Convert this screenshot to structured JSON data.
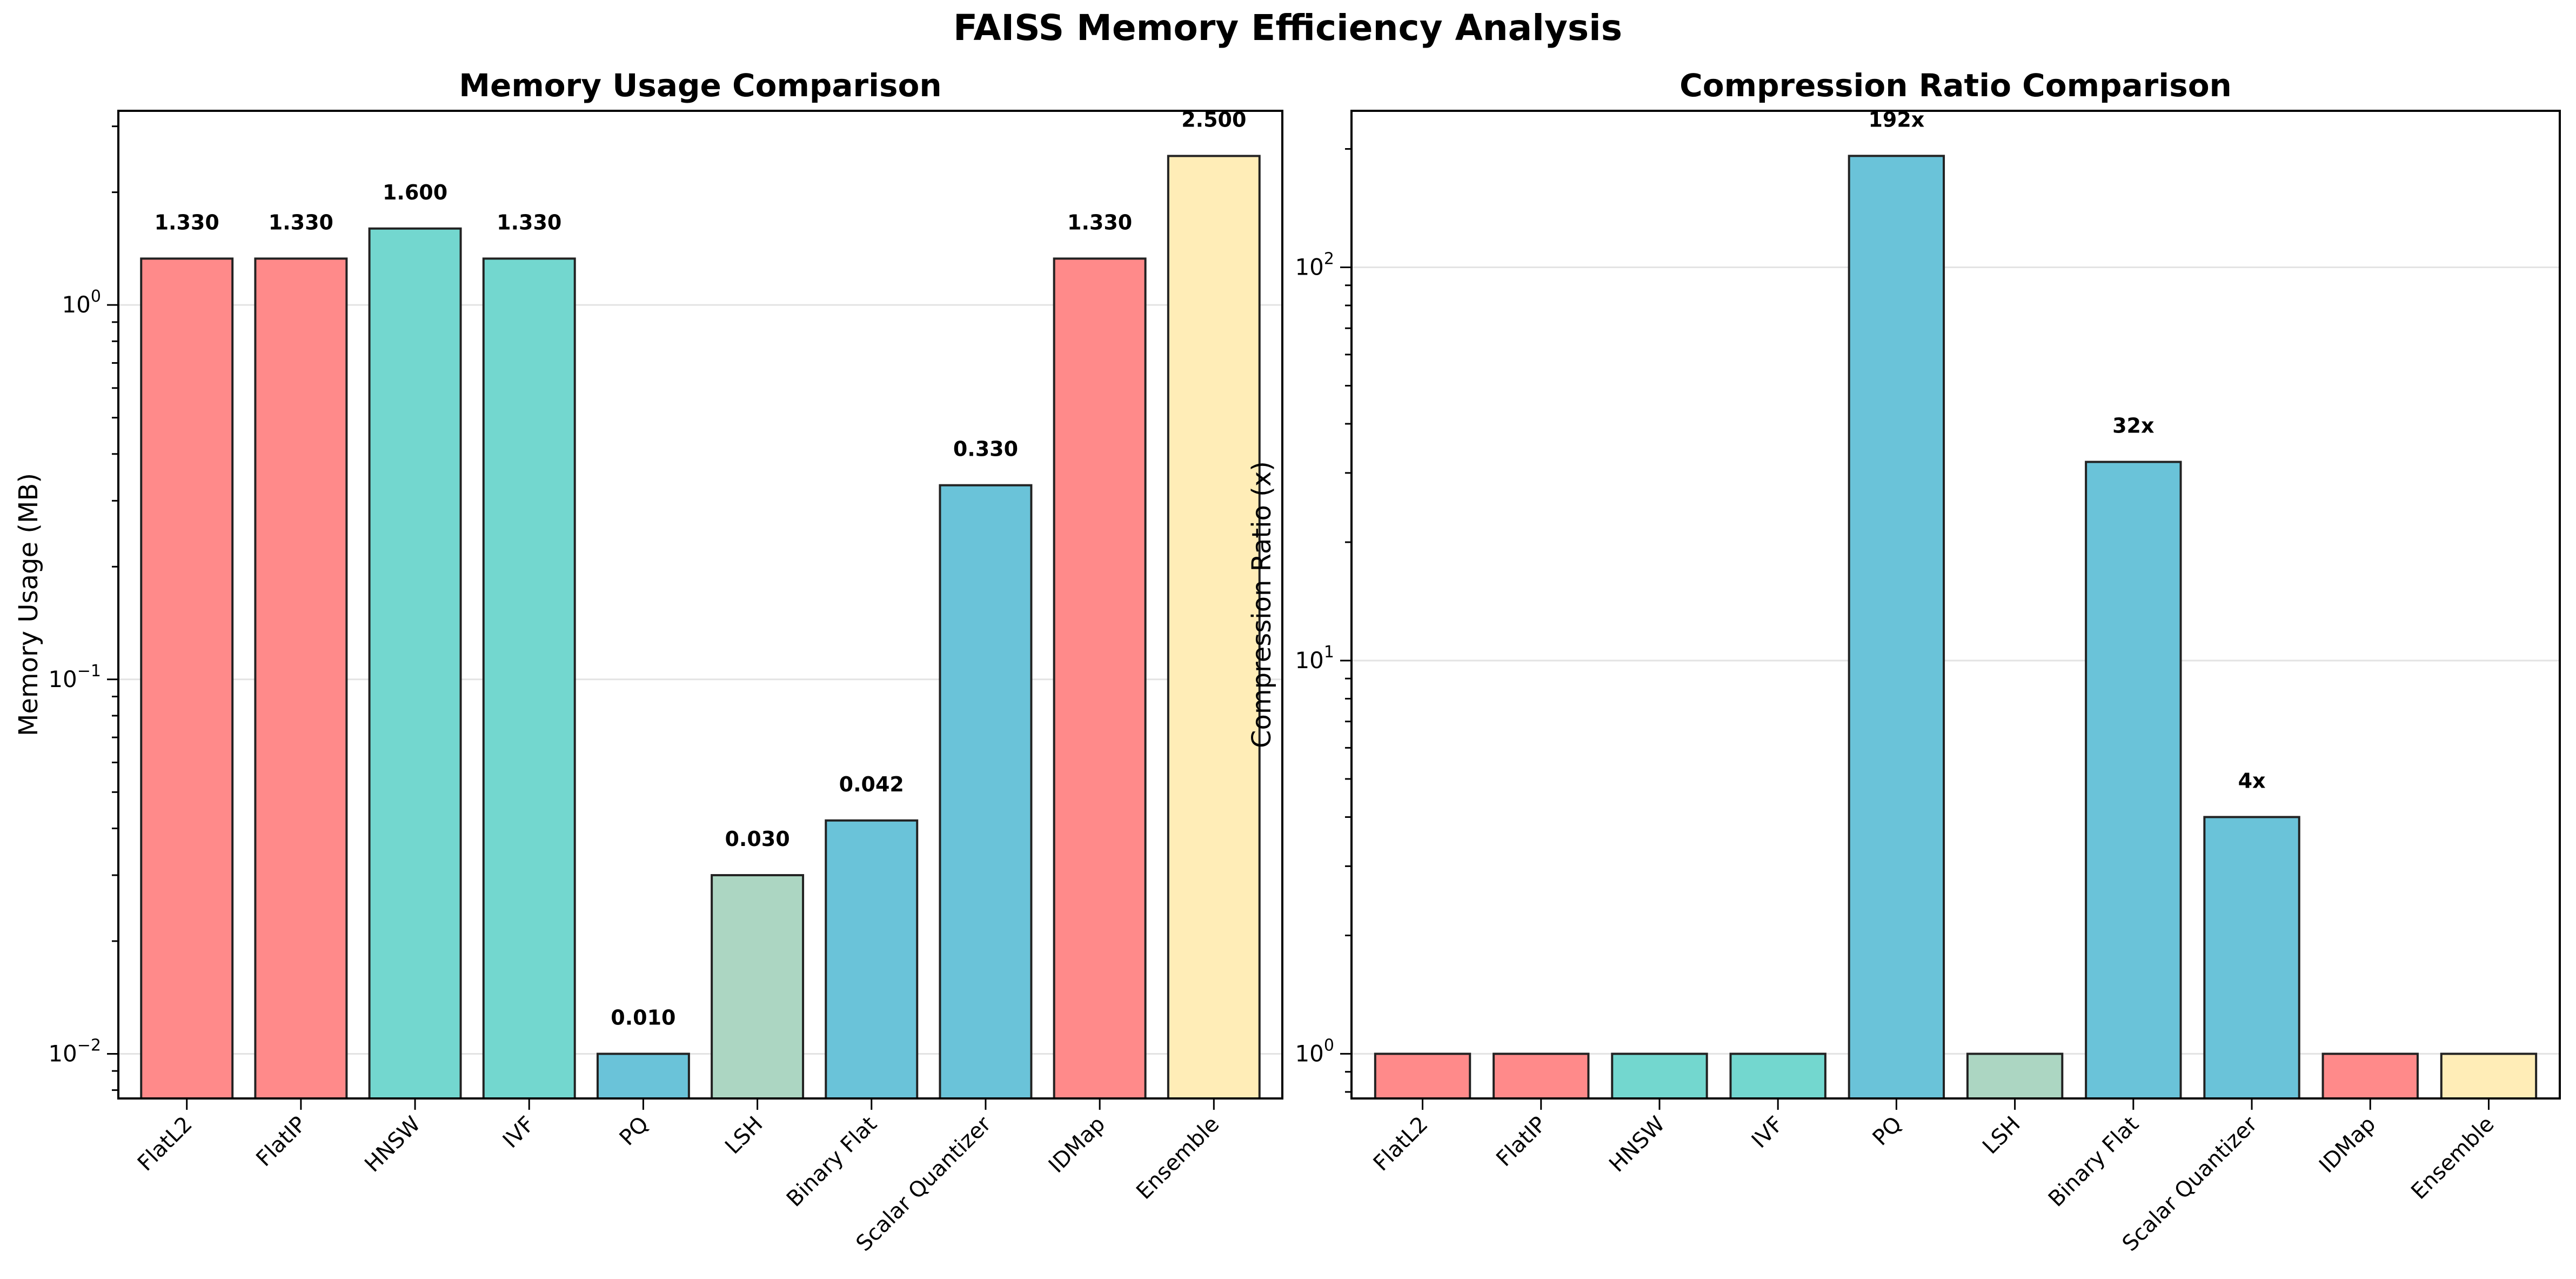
{
  "figure": {
    "suptitle": "FAISS Memory Efficiency Analysis"
  },
  "colors": {
    "red": "#ff8a8a",
    "teal": "#73d7cf",
    "blue": "#6ac3d9",
    "sage": "#acd6c2",
    "yellow": "#ffedb7",
    "edge": "#222222",
    "grid": "#e3e3e3",
    "text": "#000000"
  },
  "chart_data": [
    {
      "type": "bar",
      "title": "Memory Usage Comparison",
      "xlabel": "",
      "ylabel": "Memory Usage (MB)",
      "yscale": "log",
      "ylim": [
        0.0076,
        3.3
      ],
      "yticks": [
        {
          "value": 0.01,
          "base": "10",
          "exp": "−2"
        },
        {
          "value": 0.1,
          "base": "10",
          "exp": "−1"
        },
        {
          "value": 1,
          "base": "10",
          "exp": "0"
        }
      ],
      "grid": true,
      "categories": [
        "FlatL2",
        "FlatIP",
        "HNSW",
        "IVF",
        "PQ",
        "LSH",
        "Binary Flat",
        "Scalar Quantizer",
        "IDMap",
        "Ensemble"
      ],
      "values": [
        1.33,
        1.33,
        1.6,
        1.33,
        0.01,
        0.03,
        0.042,
        0.33,
        1.33,
        2.5
      ],
      "value_labels": [
        "1.330",
        "1.330",
        "1.600",
        "1.330",
        "0.010",
        "0.030",
        "0.042",
        "0.330",
        "1.330",
        "2.500"
      ],
      "bar_colors": [
        "red",
        "red",
        "teal",
        "teal",
        "blue",
        "sage",
        "blue",
        "blue",
        "red",
        "yellow"
      ]
    },
    {
      "type": "bar",
      "title": "Compression Ratio Comparison",
      "xlabel": "",
      "ylabel": "Compression Ratio (x)",
      "yscale": "log",
      "ylim": [
        0.77,
        250
      ],
      "yticks": [
        {
          "value": 1,
          "base": "10",
          "exp": "0"
        },
        {
          "value": 10,
          "base": "10",
          "exp": "1"
        },
        {
          "value": 100,
          "base": "10",
          "exp": "2"
        }
      ],
      "grid": true,
      "categories": [
        "FlatL2",
        "FlatIP",
        "HNSW",
        "IVF",
        "PQ",
        "LSH",
        "Binary Flat",
        "Scalar Quantizer",
        "IDMap",
        "Ensemble"
      ],
      "values": [
        1,
        1,
        1,
        1,
        192,
        1,
        32,
        4,
        1,
        1
      ],
      "value_labels": [
        "",
        "",
        "",
        "",
        "192x",
        "",
        "32x",
        "4x",
        "",
        ""
      ],
      "bar_colors": [
        "red",
        "red",
        "teal",
        "teal",
        "blue",
        "sage",
        "blue",
        "blue",
        "red",
        "yellow"
      ]
    }
  ]
}
